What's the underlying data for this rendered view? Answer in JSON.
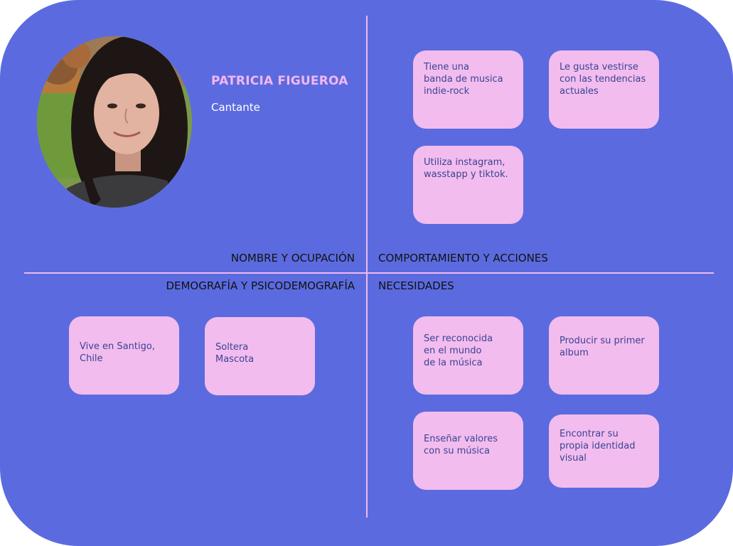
{
  "persona": {
    "name": "PATRICIA FIGUEROA",
    "occupation": "Cantante"
  },
  "sections": {
    "name_occupation": "NOMBRE Y OCUPACIÓN",
    "behavior_actions": "COMPORTAMIENTO Y ACCIONES",
    "demographics": "DEMOGRAFÍA Y PSICODEMOGRAFÍA",
    "needs": "NECESIDADES"
  },
  "behavior_cards": [
    "Tiene una\nbanda de musica\nindie-rock",
    "Le gusta vestirse\ncon las tendencias\nactuales",
    "Utiliza instagram,\nwasstapp y tiktok."
  ],
  "demographic_cards": [
    "Vive en Santigo,\nChile",
    "Soltera\nMascota"
  ],
  "need_cards": [
    "Ser reconocida\nen el mundo\nde la música",
    "Producir su primer\nalbum",
    "Enseñar valores\ncon su música",
    "Encontrar su\npropia identidad\nvisual"
  ],
  "colors": {
    "board": "#5b6bdf",
    "card": "#f2bcee",
    "divider": "#f0b8ef",
    "name": "#f4b6f2",
    "card_text": "#3a4493"
  }
}
